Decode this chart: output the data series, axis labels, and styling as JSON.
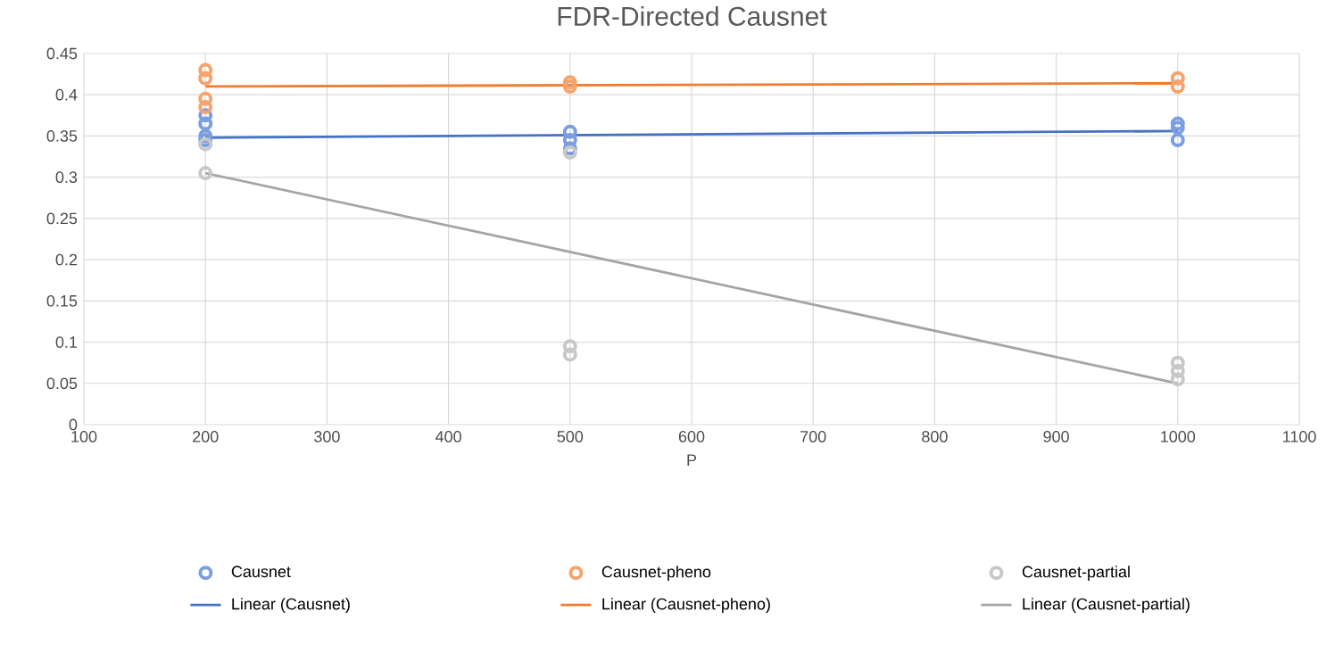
{
  "chart_data": {
    "type": "scatter",
    "title": "FDR-Directed Causnet",
    "xlabel": "P",
    "xlim": [
      100,
      1100
    ],
    "xticks": [
      100,
      200,
      300,
      400,
      500,
      600,
      700,
      800,
      900,
      1000,
      1100
    ],
    "ylim": [
      0,
      0.45
    ],
    "yticks": [
      0,
      0.05,
      0.1,
      0.15,
      0.2,
      0.25,
      0.3,
      0.35,
      0.4,
      0.45
    ],
    "grid": true,
    "legend": "bottom",
    "marker": "circle",
    "series": [
      {
        "name": "Causnet",
        "color": "#7a9ee0",
        "x": [
          200,
          200,
          200,
          200,
          500,
          500,
          500,
          1000,
          1000,
          1000
        ],
        "values": [
          0.375,
          0.365,
          0.35,
          0.345,
          0.355,
          0.345,
          0.335,
          0.365,
          0.36,
          0.345
        ]
      },
      {
        "name": "Causnet-pheno",
        "color": "#f4a46c",
        "x": [
          200,
          200,
          200,
          200,
          500,
          500,
          1000,
          1000
        ],
        "values": [
          0.43,
          0.42,
          0.395,
          0.385,
          0.415,
          0.41,
          0.42,
          0.41
        ]
      },
      {
        "name": "Causnet-partial",
        "color": "#c8c8c8",
        "x": [
          200,
          200,
          500,
          500,
          500,
          1000,
          1000,
          1000
        ],
        "values": [
          0.34,
          0.305,
          0.33,
          0.095,
          0.085,
          0.075,
          0.065,
          0.055
        ]
      },
      {
        "name": "Linear (Causnet)",
        "type": "line",
        "marker": "none",
        "color": "#4472c4",
        "x": [
          200,
          1000
        ],
        "values": [
          0.348,
          0.356
        ]
      },
      {
        "name": "Linear (Causnet-pheno)",
        "type": "line",
        "marker": "none",
        "color": "#ed7d31",
        "x": [
          200,
          1000
        ],
        "values": [
          0.41,
          0.414
        ]
      },
      {
        "name": "Linear (Causnet-partial)",
        "type": "line",
        "marker": "none",
        "color": "#a5a5a5",
        "x": [
          200,
          1000
        ],
        "values": [
          0.305,
          0.05
        ]
      }
    ]
  }
}
